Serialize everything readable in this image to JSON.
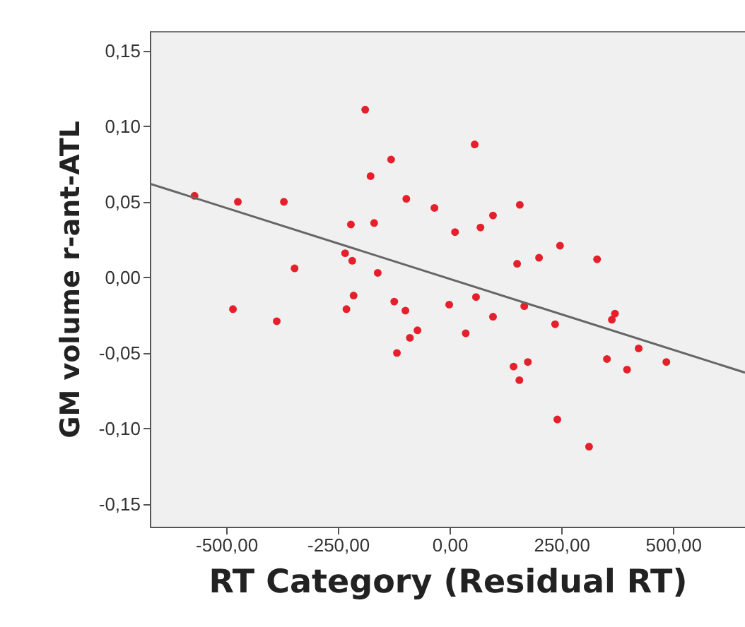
{
  "chart_data": {
    "type": "scatter",
    "xlabel": "RT Category (Residual RT)",
    "ylabel": "GM volume  r-ant-ATL",
    "xlim": [
      -671,
      661
    ],
    "ylim": [
      -0.165,
      0.163
    ],
    "xticks": [
      {
        "value": -500,
        "label": "-500,00"
      },
      {
        "value": -250,
        "label": "-250,00"
      },
      {
        "value": 0,
        "label": "0,00"
      },
      {
        "value": 250,
        "label": "250,00"
      },
      {
        "value": 500,
        "label": "500,00"
      }
    ],
    "yticks": [
      {
        "value": -0.15,
        "label": "-0,15"
      },
      {
        "value": -0.1,
        "label": "-0,10"
      },
      {
        "value": -0.05,
        "label": "-0,05"
      },
      {
        "value": 0,
        "label": "0,00"
      },
      {
        "value": 0.05,
        "label": "0,05"
      },
      {
        "value": 0.1,
        "label": "0,10"
      },
      {
        "value": 0.15,
        "label": "0,15"
      }
    ],
    "grid": false,
    "series": [
      {
        "color": "#e5202b",
        "marker": "circle",
        "x": [
          -571,
          -474,
          -371,
          -189,
          -177,
          -131,
          -97,
          -34,
          -221,
          -169,
          -234,
          -218,
          -347,
          -161,
          56,
          12,
          157,
          97,
          69,
          247,
          151,
          200,
          330,
          -485,
          -387,
          -215,
          -231,
          -124,
          -99,
          -72,
          -89,
          -118,
          -1,
          59,
          97,
          36,
          167,
          236,
          143,
          175,
          156,
          241,
          312,
          370,
          363,
          352,
          397,
          423,
          485
        ],
        "values": [
          0.054,
          0.05,
          0.05,
          0.111,
          0.067,
          0.078,
          0.052,
          0.046,
          0.035,
          0.036,
          0.016,
          0.011,
          0.006,
          0.003,
          0.088,
          0.03,
          0.048,
          0.041,
          0.033,
          0.021,
          0.009,
          0.013,
          0.012,
          -0.021,
          -0.029,
          -0.012,
          -0.021,
          -0.016,
          -0.022,
          -0.035,
          -0.04,
          -0.05,
          -0.018,
          -0.013,
          -0.026,
          -0.037,
          -0.019,
          -0.031,
          -0.059,
          -0.056,
          -0.068,
          -0.094,
          -0.112,
          -0.024,
          -0.028,
          -0.054,
          -0.061,
          -0.047,
          -0.056
        ]
      },
      {
        "type": "line",
        "color": "#666666",
        "line_style": "solid",
        "x": [
          -671,
          661
        ],
        "values": [
          0.062,
          -0.063
        ]
      }
    ]
  }
}
